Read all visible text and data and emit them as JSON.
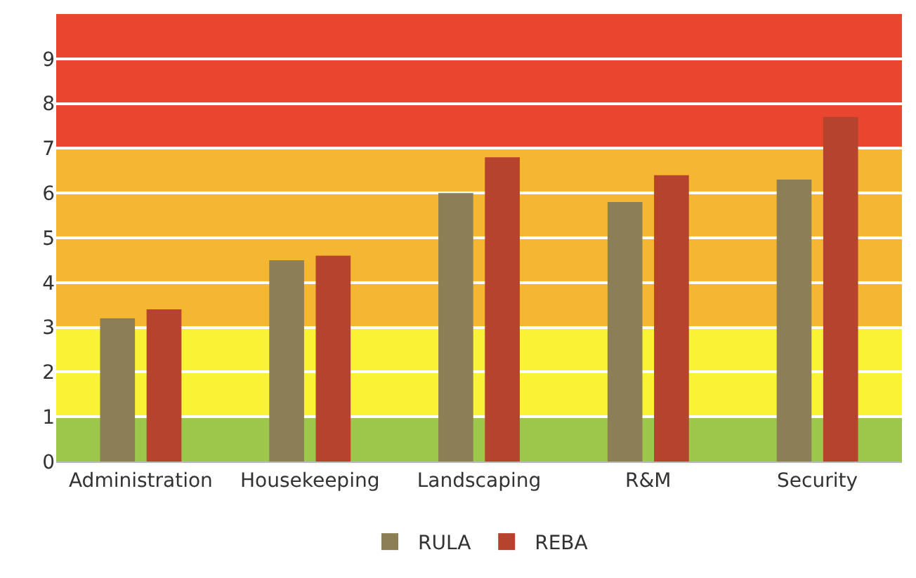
{
  "chart_data": {
    "type": "bar",
    "categories": [
      "Administration",
      "Housekeeping",
      "Landscaping",
      "R&M",
      "Security"
    ],
    "series": [
      {
        "name": "RULA",
        "color": "#8c7f55",
        "values": [
          3.2,
          4.5,
          6.0,
          5.8,
          6.3
        ]
      },
      {
        "name": "REBA",
        "color": "#b5432e",
        "values": [
          3.4,
          4.6,
          6.8,
          6.4,
          7.7
        ]
      }
    ],
    "ylim": [
      0,
      10
    ],
    "yticks": [
      0,
      1,
      2,
      3,
      4,
      5,
      6,
      7,
      8,
      9
    ],
    "bands": [
      {
        "axis": "y",
        "from": 0,
        "to": 1,
        "color": "#9dc74b"
      },
      {
        "axis": "y",
        "from": 1,
        "to": 3,
        "color": "#f9f235"
      },
      {
        "axis": "y",
        "from": 3,
        "to": 7,
        "color": "#f5b731"
      },
      {
        "axis": "y",
        "from": 7,
        "to": 10,
        "color": "#e9452f"
      }
    ],
    "grid": "y",
    "legend": "bottom"
  }
}
